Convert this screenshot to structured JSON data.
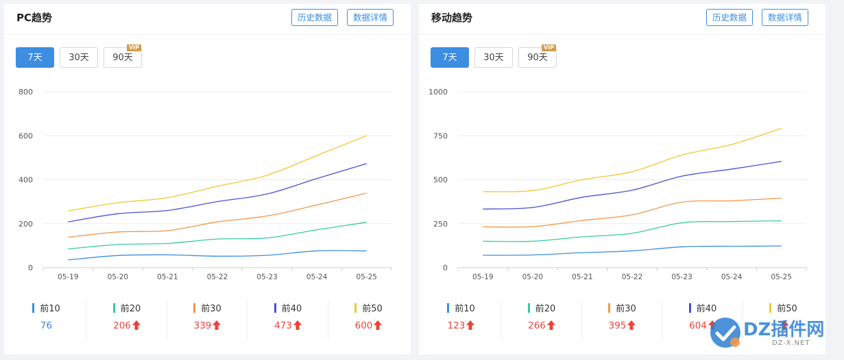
{
  "panels": [
    {
      "id": "pc",
      "title": "PC趋势",
      "buttons": {
        "history": "历史数据",
        "detail": "数据详情"
      },
      "ranges": [
        "7天",
        "30天",
        "90天"
      ],
      "active_range": 0,
      "vip_badge": "VIP",
      "legend": [
        {
          "label": "前10",
          "value": "76",
          "up": false,
          "color": "#3b8ee0"
        },
        {
          "label": "前20",
          "value": "206",
          "up": true,
          "color": "#36c9a6"
        },
        {
          "label": "前30",
          "value": "339",
          "up": true,
          "color": "#f2974a"
        },
        {
          "label": "前40",
          "value": "473",
          "up": true,
          "color": "#4a4fd1"
        },
        {
          "label": "前50",
          "value": "600",
          "up": true,
          "color": "#f3c631"
        }
      ]
    },
    {
      "id": "mobile",
      "title": "移动趋势",
      "buttons": {
        "history": "历史数据",
        "detail": "数据详情"
      },
      "ranges": [
        "7天",
        "30天",
        "90天"
      ],
      "active_range": 0,
      "vip_badge": "VIP",
      "legend": [
        {
          "label": "前10",
          "value": "123",
          "up": true,
          "color": "#3b8ee0"
        },
        {
          "label": "前20",
          "value": "266",
          "up": true,
          "color": "#36c9a6"
        },
        {
          "label": "前30",
          "value": "395",
          "up": true,
          "color": "#f2974a"
        },
        {
          "label": "前40",
          "value": "604",
          "up": true,
          "color": "#4a4fd1"
        },
        {
          "label": "前50",
          "value": "",
          "up": true,
          "color": "#f3c631"
        }
      ]
    }
  ],
  "chart_data": [
    {
      "type": "line",
      "title": "PC趋势",
      "x": [
        "05-19",
        "05-20",
        "05-21",
        "05-22",
        "05-23",
        "05-24",
        "05-25"
      ],
      "ylim": [
        0,
        800
      ],
      "yticks": [
        0,
        200,
        400,
        600,
        800
      ],
      "grid": true,
      "series": [
        {
          "name": "前10",
          "color": "#3b8ee0",
          "values": [
            35,
            55,
            58,
            52,
            56,
            76,
            76
          ]
        },
        {
          "name": "前20",
          "color": "#36c9a6",
          "values": [
            85,
            105,
            110,
            130,
            135,
            172,
            206
          ]
        },
        {
          "name": "前30",
          "color": "#f2974a",
          "values": [
            138,
            162,
            168,
            208,
            235,
            285,
            339
          ]
        },
        {
          "name": "前40",
          "color": "#4a4fd1",
          "values": [
            208,
            245,
            260,
            300,
            335,
            405,
            473
          ]
        },
        {
          "name": "前50",
          "color": "#f3c631",
          "values": [
            258,
            295,
            318,
            370,
            420,
            510,
            600
          ]
        }
      ]
    },
    {
      "type": "line",
      "title": "移动趋势",
      "x": [
        "05-19",
        "05-20",
        "05-21",
        "05-22",
        "05-23",
        "05-24",
        "05-25"
      ],
      "ylim": [
        0,
        1000
      ],
      "yticks": [
        0,
        250,
        500,
        750,
        1000
      ],
      "grid": true,
      "series": [
        {
          "name": "前10",
          "color": "#3b8ee0",
          "values": [
            70,
            72,
            85,
            95,
            118,
            121,
            123
          ]
        },
        {
          "name": "前20",
          "color": "#36c9a6",
          "values": [
            150,
            150,
            175,
            195,
            255,
            262,
            266
          ]
        },
        {
          "name": "前30",
          "color": "#f2974a",
          "values": [
            232,
            233,
            268,
            300,
            372,
            380,
            395
          ]
        },
        {
          "name": "前40",
          "color": "#4a4fd1",
          "values": [
            333,
            342,
            400,
            440,
            520,
            560,
            604
          ]
        },
        {
          "name": "前50",
          "color": "#f3c631",
          "values": [
            432,
            438,
            500,
            545,
            640,
            700,
            792
          ]
        }
      ]
    }
  ],
  "watermark": {
    "text": "DZ插件网",
    "sub": "DZ-X.NET"
  }
}
